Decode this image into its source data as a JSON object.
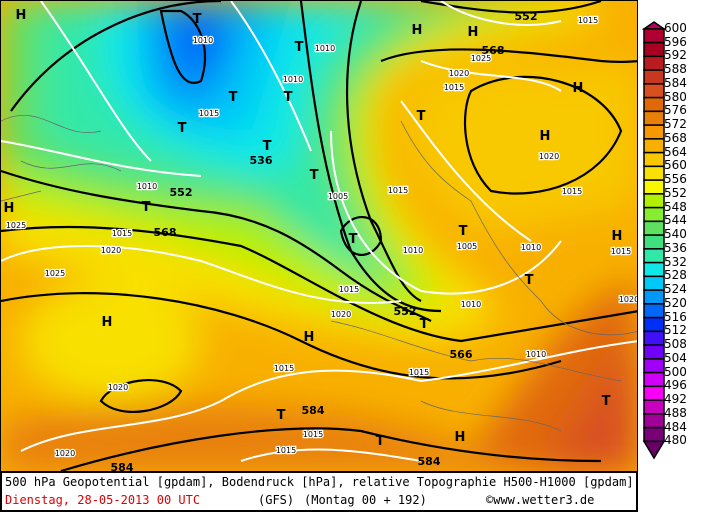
{
  "footer": {
    "line1": "500 hPa Geopotential [gpdam], Bodendruck [hPa], relative Topographie H500-H1000 [gpdam]",
    "date": "Dienstag, 28-05-2013  00 UTC",
    "model": "(GFS)",
    "run": "(Montag 00 + 192)",
    "copyright": "©www.wetter3.de"
  },
  "legend": {
    "labels": [
      "600",
      "596",
      "592",
      "588",
      "584",
      "580",
      "576",
      "572",
      "568",
      "564",
      "560",
      "556",
      "552",
      "548",
      "544",
      "540",
      "536",
      "532",
      "528",
      "524",
      "520",
      "516",
      "512",
      "508",
      "504",
      "500",
      "496",
      "492",
      "488",
      "484",
      "480"
    ],
    "colors": [
      "#b8005e",
      "#b00032",
      "#a80020",
      "#b81c20",
      "#c83820",
      "#d85020",
      "#e06808",
      "#e88008",
      "#f89800",
      "#f8b000",
      "#f8c800",
      "#f8e000",
      "#f8f800",
      "#b0f000",
      "#88ec30",
      "#60e060",
      "#40e080",
      "#30e8a8",
      "#10e8e8",
      "#00c8f8",
      "#0098f8",
      "#0068f8",
      "#0030f8",
      "#4010f8",
      "#7000f8",
      "#a000f8",
      "#d000f8",
      "#f800f8",
      "#c800c0",
      "#a00098",
      "#780078",
      "#680068"
    ]
  },
  "map": {
    "labels": [
      "H",
      "T",
      "1010",
      "T",
      "T",
      "T",
      "T",
      "536",
      "1015",
      "T",
      "1010",
      "1010",
      "H",
      "H",
      "552",
      "1015",
      "568",
      "1020",
      "1025",
      "1015",
      "H",
      "H",
      "1020",
      "1015",
      "T",
      "T",
      "1005",
      "1015",
      "552",
      "1010",
      "T",
      "568",
      "1025",
      "H",
      "1015",
      "1020",
      "1025",
      "T",
      "1010",
      "T",
      "1005",
      "1010",
      "H",
      "1015",
      "T",
      "1020",
      "1015",
      "1020",
      "552",
      "T",
      "1010",
      "H",
      "H",
      "566",
      "1010",
      "1015",
      "1015",
      "1020",
      "T",
      "584",
      "1015",
      "1015",
      "T",
      "H",
      "T",
      "584",
      "584",
      "1020"
    ]
  }
}
